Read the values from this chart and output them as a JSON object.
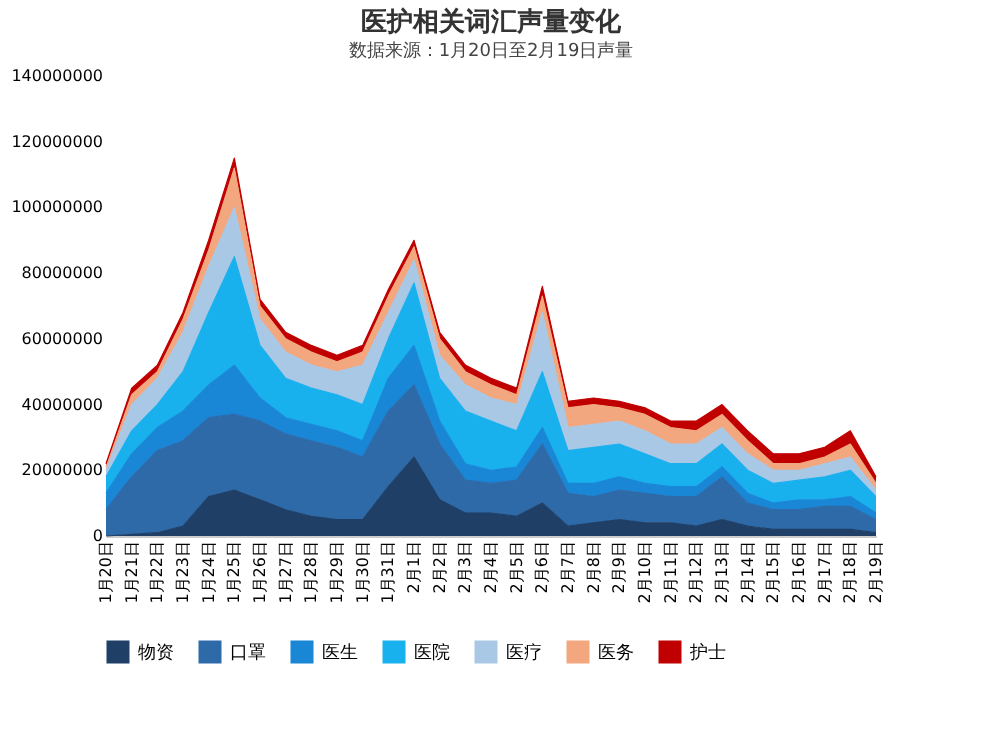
{
  "chart_data": {
    "type": "area",
    "title": "医护相关词汇声量变化",
    "stacked": true,
    "legend": "bottom",
    "grid": false,
    "categories": [
      "1月20日",
      "1月21日",
      "1月22日",
      "1月23日",
      "1月24日",
      "1月25日",
      "1月26日",
      "1月27日",
      "1月28日",
      "1月29日",
      "1月30日",
      "1月31日",
      "2月1日",
      "2月2日",
      "2月3日",
      "2月4日",
      "2月5日",
      "2月6日",
      "2月7日",
      "2月8日",
      "2月9日",
      "2月10日",
      "2月11日",
      "2月12日",
      "2月13日",
      "2月14日",
      "2月15日",
      "2月16日",
      "2月17日",
      "2月18日",
      "2月19日"
    ],
    "ylim": [
      0,
      140000000
    ],
    "yticks": [
      0,
      20000000,
      40000000,
      60000000,
      80000000,
      100000000,
      120000000,
      140000000
    ],
    "series": [
      {
        "name": "物资",
        "color": "#1f3f66",
        "values": [
          0,
          500000,
          1000000,
          3000000,
          12000000,
          14000000,
          11000000,
          8000000,
          6000000,
          5000000,
          5000000,
          15000000,
          24000000,
          11000000,
          7000000,
          7000000,
          6000000,
          10000000,
          3000000,
          4000000,
          5000000,
          4000000,
          4000000,
          3000000,
          5000000,
          3000000,
          2000000,
          2000000,
          2000000,
          2000000,
          1000000
        ]
      },
      {
        "name": "口罩",
        "color": "#2e6aa8",
        "values": [
          8000000,
          17500000,
          25000000,
          26000000,
          24000000,
          23000000,
          24000000,
          23000000,
          23000000,
          22000000,
          19000000,
          23000000,
          22000000,
          17000000,
          10000000,
          9000000,
          11000000,
          18000000,
          10000000,
          8000000,
          9000000,
          9000000,
          8000000,
          9000000,
          13000000,
          7000000,
          6000000,
          6000000,
          7000000,
          7000000,
          4000000
        ]
      },
      {
        "name": "医生",
        "color": "#1a86d6",
        "values": [
          5000000,
          7000000,
          7000000,
          9000000,
          10000000,
          15000000,
          7000000,
          5000000,
          5000000,
          5000000,
          5000000,
          10000000,
          12000000,
          7000000,
          5000000,
          4000000,
          4000000,
          5000000,
          3000000,
          4000000,
          4000000,
          3000000,
          3000000,
          3000000,
          3000000,
          3000000,
          2000000,
          3000000,
          2000000,
          3000000,
          2000000
        ]
      },
      {
        "name": "医院",
        "color": "#19b0ee",
        "values": [
          5000000,
          7000000,
          7000000,
          12000000,
          22000000,
          33000000,
          16000000,
          12000000,
          11000000,
          11000000,
          11000000,
          12000000,
          19000000,
          13000000,
          16000000,
          15000000,
          11000000,
          17000000,
          10000000,
          11000000,
          10000000,
          9000000,
          7000000,
          7000000,
          7000000,
          7000000,
          6000000,
          6000000,
          7000000,
          8000000,
          5000000
        ]
      },
      {
        "name": "医疗",
        "color": "#a9c8e6",
        "values": [
          2000000,
          8000000,
          8000000,
          12000000,
          14000000,
          15000000,
          8000000,
          8000000,
          7000000,
          7000000,
          12000000,
          8000000,
          7000000,
          7000000,
          8000000,
          7000000,
          8000000,
          18000000,
          7000000,
          7000000,
          7000000,
          7000000,
          6000000,
          6000000,
          5000000,
          5000000,
          4000000,
          3000000,
          4000000,
          4000000,
          2000000
        ]
      },
      {
        "name": "医务",
        "color": "#f2a77f",
        "values": [
          1000000,
          3000000,
          2000000,
          4000000,
          5000000,
          12000000,
          4000000,
          4000000,
          4000000,
          3000000,
          4000000,
          5000000,
          4000000,
          5000000,
          4000000,
          4000000,
          3000000,
          5000000,
          6000000,
          6000000,
          4000000,
          5000000,
          5000000,
          4000000,
          4000000,
          4000000,
          2000000,
          2000000,
          2000000,
          4000000,
          2000000
        ]
      },
      {
        "name": "护士",
        "color": "#c00000",
        "values": [
          1000000,
          2000000,
          2000000,
          2000000,
          3000000,
          3000000,
          2000000,
          2000000,
          2000000,
          2000000,
          2000000,
          2000000,
          2000000,
          2000000,
          2000000,
          2000000,
          2000000,
          3000000,
          2000000,
          2000000,
          2000000,
          2000000,
          2000000,
          3000000,
          3000000,
          3000000,
          3000000,
          3000000,
          3000000,
          4000000,
          2000000
        ]
      }
    ],
    "annotations": [
      "数据来源：1月20日至2月19日声量"
    ]
  }
}
